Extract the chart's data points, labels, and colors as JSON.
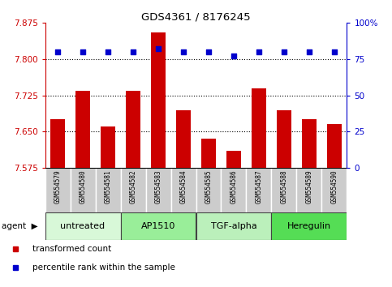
{
  "title": "GDS4361 / 8176245",
  "samples": [
    "GSM554579",
    "GSM554580",
    "GSM554581",
    "GSM554582",
    "GSM554583",
    "GSM554584",
    "GSM554585",
    "GSM554586",
    "GSM554587",
    "GSM554588",
    "GSM554589",
    "GSM554590"
  ],
  "red_values": [
    7.675,
    7.735,
    7.66,
    7.735,
    7.855,
    7.695,
    7.635,
    7.61,
    7.74,
    7.695,
    7.675,
    7.665
  ],
  "blue_values": [
    80,
    80,
    80,
    80,
    82,
    80,
    80,
    77,
    80,
    80,
    80,
    80
  ],
  "ylim_left": [
    7.575,
    7.875
  ],
  "ylim_right": [
    0,
    100
  ],
  "yticks_left": [
    7.575,
    7.65,
    7.725,
    7.8,
    7.875
  ],
  "yticks_right": [
    0,
    25,
    50,
    75,
    100
  ],
  "grid_values": [
    7.65,
    7.725,
    7.8
  ],
  "agent_groups": [
    {
      "label": "untreated",
      "start": 0,
      "end": 3,
      "color": "#d8f8d8"
    },
    {
      "label": "AP1510",
      "start": 3,
      "end": 6,
      "color": "#99ee99"
    },
    {
      "label": "TGF-alpha",
      "start": 6,
      "end": 9,
      "color": "#bbf0bb"
    },
    {
      "label": "Heregulin",
      "start": 9,
      "end": 12,
      "color": "#55dd55"
    }
  ],
  "bar_color": "#cc0000",
  "dot_color": "#0000cc",
  "bar_bottom": 7.575,
  "tick_color_left": "#cc0000",
  "tick_color_right": "#0000cc",
  "sample_box_color": "#cccccc",
  "agent_label": "agent",
  "legend_items": [
    {
      "color": "#cc0000",
      "label": "transformed count"
    },
    {
      "color": "#0000cc",
      "label": "percentile rank within the sample"
    }
  ]
}
